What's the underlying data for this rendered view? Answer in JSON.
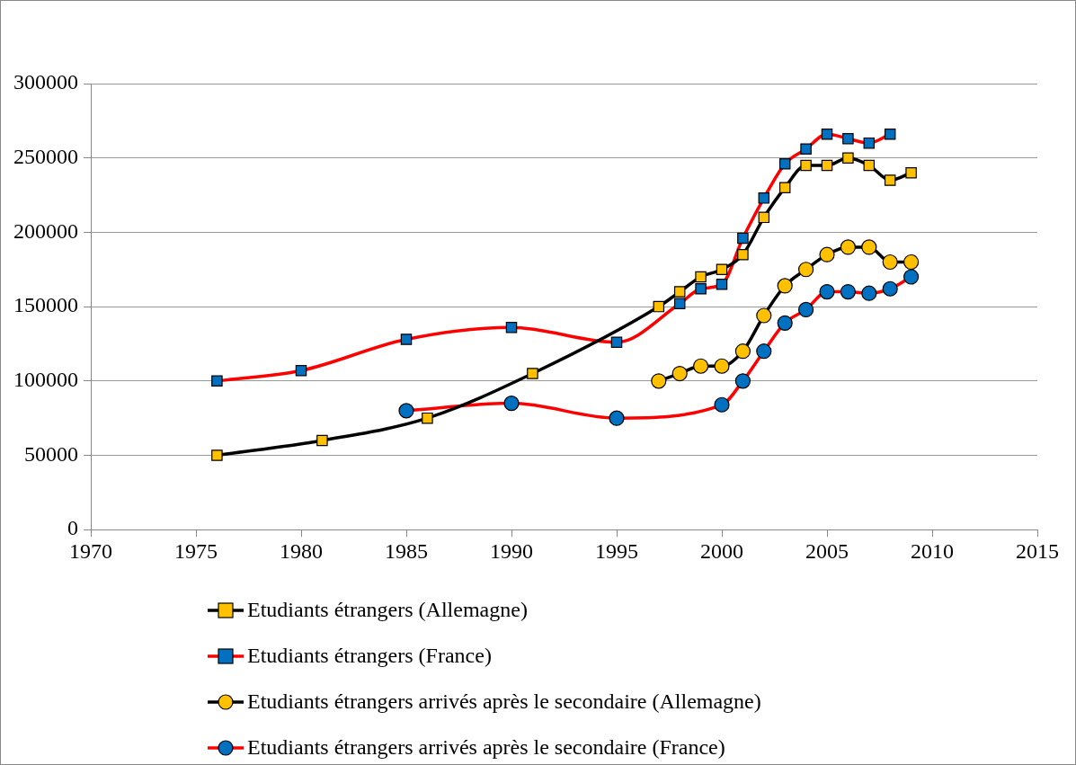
{
  "chart_data": {
    "type": "line",
    "xlim": [
      1970,
      2015
    ],
    "xticks": [
      1970,
      1975,
      1980,
      1985,
      1990,
      1995,
      2000,
      2005,
      2010,
      2015
    ],
    "ylim": [
      0,
      300000
    ],
    "yticks": [
      0,
      50000,
      100000,
      150000,
      200000,
      250000,
      300000
    ],
    "grid": "y",
    "legend": "bottom",
    "line_style": "solid",
    "series": [
      {
        "name": "Etudiants étrangers (Allemagne)",
        "color": "#000000",
        "marker": "square",
        "x": [
          1976,
          1981,
          1986,
          1991,
          1997,
          1998,
          1999,
          2000,
          2001,
          2002,
          2003,
          2004,
          2005,
          2006,
          2007,
          2008,
          2009
        ],
        "values": [
          50000,
          60000,
          75000,
          105000,
          150000,
          160000,
          170000,
          175000,
          185000,
          210000,
          230000,
          245000,
          245000,
          250000,
          245000,
          235000,
          240000
        ],
        "colors": [
          "#ffc000",
          "#ffc000",
          "#ffc000",
          "#ffc000",
          "#ffc000",
          "#ffc000",
          "#ffc000",
          "#ffc000",
          "#ffc000",
          "#ffc000",
          "#ffc000",
          "#ffc000",
          "#ffc000",
          "#ffc000",
          "#ffc000",
          "#ffc000",
          "#ffc000"
        ]
      },
      {
        "name": "Etudiants étrangers (France)",
        "color": "#ff0000",
        "marker": "square",
        "x": [
          1976,
          1980,
          1985,
          1990,
          1995,
          1998,
          1999,
          2000,
          2001,
          2002,
          2003,
          2004,
          2005,
          2006,
          2007,
          2008
        ],
        "values": [
          100000,
          107000,
          128000,
          136000,
          126000,
          152000,
          162000,
          165000,
          196000,
          223000,
          246000,
          256000,
          266000,
          263000,
          260000,
          266000
        ],
        "colors": [
          "#0070c0",
          "#0070c0",
          "#0070c0",
          "#0070c0",
          "#0070c0",
          "#0070c0",
          "#0070c0",
          "#0070c0",
          "#0070c0",
          "#0070c0",
          "#0070c0",
          "#0070c0",
          "#0070c0",
          "#0070c0",
          "#0070c0",
          "#0070c0"
        ]
      },
      {
        "name": "Etudiants étrangers arrivés après le secondaire (Allemagne)",
        "color": "#000000",
        "marker": "circle",
        "x": [
          1997,
          1998,
          1999,
          2000,
          2001,
          2002,
          2003,
          2004,
          2005,
          2006,
          2007,
          2008,
          2009
        ],
        "values": [
          100000,
          105000,
          110000,
          110000,
          120000,
          144000,
          164000,
          175000,
          185000,
          190000,
          190000,
          180000,
          180000
        ],
        "colors": [
          "#ffc000",
          "#ffc000",
          "#ffc000",
          "#ffc000",
          "#ffc000",
          "#ffc000",
          "#ffc000",
          "#ffc000",
          "#ffc000",
          "#ffc000",
          "#ffc000",
          "#ffc000",
          "#ffc000"
        ]
      },
      {
        "name": "Etudiants étrangers arrivés après le secondaire (France)",
        "color": "#ff0000",
        "marker": "circle",
        "x": [
          1985,
          1990,
          1995,
          2000,
          2001,
          2002,
          2003,
          2004,
          2005,
          2006,
          2007,
          2008,
          2009
        ],
        "values": [
          80000,
          85000,
          75000,
          84000,
          100000,
          120000,
          139000,
          148000,
          160000,
          160000,
          159000,
          162000,
          170000
        ],
        "colors": [
          "#0070c0",
          "#0070c0",
          "#0070c0",
          "#0070c0",
          "#0070c0",
          "#0070c0",
          "#0070c0",
          "#0070c0",
          "#0070c0",
          "#0070c0",
          "#0070c0",
          "#0070c0",
          "#0070c0"
        ]
      }
    ]
  }
}
